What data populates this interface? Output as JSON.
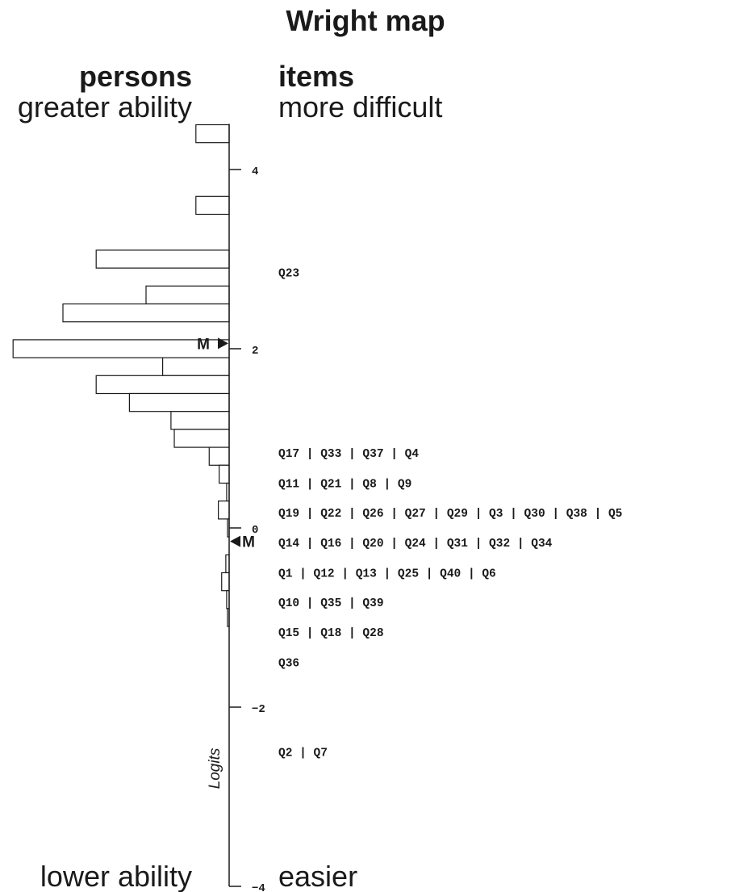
{
  "chart_data": {
    "type": "wright-map",
    "title": "Wright map",
    "axis_label": "Logits",
    "ylim": [
      -4,
      4.5
    ],
    "yticks": [
      4,
      2,
      0,
      -2,
      -4
    ],
    "tick_labels": [
      "4",
      "2",
      "0",
      "−2",
      "−4"
    ],
    "bin_width": 0.2,
    "persons": {
      "header": "persons",
      "top_label": "greater ability",
      "bottom_label": "lower ability",
      "mean": 2.06,
      "mean_label": "M",
      "bins": [
        {
          "y": 4.5,
          "count": 2
        },
        {
          "y": 3.7,
          "count": 2
        },
        {
          "y": 3.1,
          "count": 8
        },
        {
          "y": 2.7,
          "count": 5
        },
        {
          "y": 2.5,
          "count": 10
        },
        {
          "y": 2.1,
          "count": 13
        },
        {
          "y": 1.9,
          "count": 4
        },
        {
          "y": 1.7,
          "count": 8
        },
        {
          "y": 1.5,
          "count": 6
        },
        {
          "y": 1.3,
          "count": 3.5
        },
        {
          "y": 1.1,
          "count": 3.3
        },
        {
          "y": 0.9,
          "count": 1.2
        },
        {
          "y": 0.7,
          "count": 0.6
        },
        {
          "y": 0.5,
          "count": 0.15
        },
        {
          "y": 0.3,
          "count": 0.65
        },
        {
          "y": 0.1,
          "count": 0.1
        },
        {
          "y": -0.3,
          "count": 0.2
        },
        {
          "y": -0.5,
          "count": 0.45
        },
        {
          "y": -0.7,
          "count": 0.15
        },
        {
          "y": -0.9,
          "count": 0.1
        }
      ]
    },
    "items": {
      "header": "items",
      "top_label": "more difficult",
      "bottom_label": "easier",
      "mean": -0.15,
      "mean_label": "M",
      "rows": [
        {
          "y": 2.85,
          "label": "Q23"
        },
        {
          "y": 0.84,
          "label": "Q17 | Q33 | Q37 | Q4"
        },
        {
          "y": 0.5,
          "label": "Q11 | Q21 | Q8 | Q9"
        },
        {
          "y": 0.17,
          "label": "Q19 | Q22 | Q26 | Q27 | Q29 | Q3 | Q30 | Q38 | Q5"
        },
        {
          "y": -0.16,
          "label": "Q14 | Q16 | Q20 | Q24 | Q31 | Q32 | Q34"
        },
        {
          "y": -0.5,
          "label": "Q1 | Q12 | Q13 | Q25 | Q40 | Q6"
        },
        {
          "y": -0.83,
          "label": "Q10 | Q35 | Q39"
        },
        {
          "y": -1.16,
          "label": "Q15 | Q18 | Q28"
        },
        {
          "y": -1.5,
          "label": "Q36"
        },
        {
          "y": -2.5,
          "label": "Q2 | Q7"
        }
      ]
    }
  }
}
